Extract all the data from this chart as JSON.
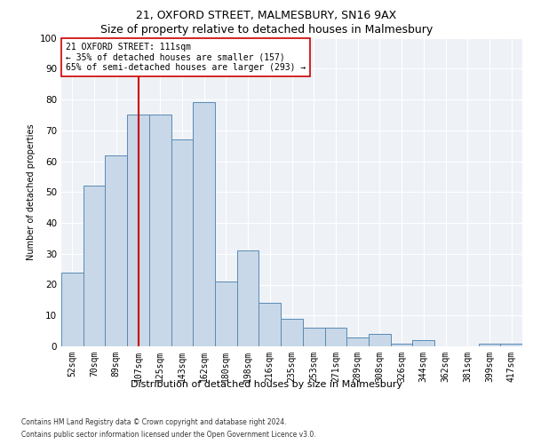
{
  "title1": "21, OXFORD STREET, MALMESBURY, SN16 9AX",
  "title2": "Size of property relative to detached houses in Malmesbury",
  "xlabel": "Distribution of detached houses by size in Malmesbury",
  "ylabel": "Number of detached properties",
  "categories": [
    "52sqm",
    "70sqm",
    "89sqm",
    "107sqm",
    "125sqm",
    "143sqm",
    "162sqm",
    "180sqm",
    "198sqm",
    "216sqm",
    "235sqm",
    "253sqm",
    "271sqm",
    "289sqm",
    "308sqm",
    "326sqm",
    "344sqm",
    "362sqm",
    "381sqm",
    "399sqm",
    "417sqm"
  ],
  "values": [
    24,
    52,
    62,
    75,
    75,
    67,
    79,
    21,
    31,
    14,
    9,
    6,
    6,
    3,
    4,
    1,
    2,
    0,
    0,
    1,
    1
  ],
  "bar_color": "#c8d8e8",
  "bar_edge_color": "#5a8ab5",
  "vline_color": "#cc0000",
  "vline_x_index": 3,
  "ylim": [
    0,
    100
  ],
  "yticks": [
    0,
    10,
    20,
    30,
    40,
    50,
    60,
    70,
    80,
    90,
    100
  ],
  "annotation_text": "21 OXFORD STREET: 111sqm\n← 35% of detached houses are smaller (157)\n65% of semi-detached houses are larger (293) →",
  "annotation_box_color": "#ffffff",
  "annotation_box_edge": "#cc0000",
  "footer1": "Contains HM Land Registry data © Crown copyright and database right 2024.",
  "footer2": "Contains public sector information licensed under the Open Government Licence v3.0.",
  "bg_color": "#eef2f7",
  "grid_color": "#ffffff",
  "title1_fontsize": 9,
  "title2_fontsize": 9,
  "ylabel_fontsize": 7,
  "xlabel_fontsize": 8,
  "tick_fontsize": 7,
  "annot_fontsize": 7,
  "footer_fontsize": 5.5
}
